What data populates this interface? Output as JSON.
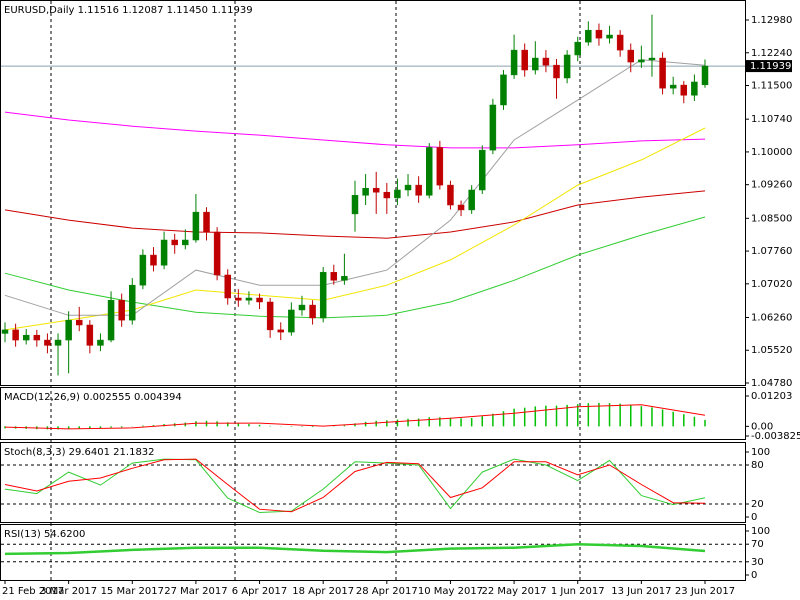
{
  "chart_data": [
    {
      "type": "candlestick",
      "title": "EURUSD,Daily  1.11516 1.12087 1.11450 1.11939",
      "price_tag": "1.11939",
      "up_color": "#008000",
      "down_color": "#c00000",
      "categories": [
        "21 Feb 2017",
        null,
        null,
        null,
        null,
        null,
        "3 Mar 2017",
        null,
        null,
        null,
        null,
        null,
        "15 Mar 2017",
        null,
        null,
        null,
        null,
        null,
        "27 Mar 2017",
        null,
        null,
        null,
        null,
        null,
        "6 Apr 2017",
        null,
        null,
        null,
        null,
        null,
        "18 Apr 2017",
        null,
        null,
        null,
        null,
        null,
        "28 Apr 2017",
        null,
        null,
        null,
        null,
        null,
        "10 May 2017",
        null,
        null,
        null,
        null,
        null,
        "22 May 2017",
        null,
        null,
        null,
        null,
        null,
        "1 Jun 2017",
        null,
        null,
        null,
        null,
        null,
        "13 Jun 2017",
        null,
        null,
        null,
        null,
        null,
        "23 Jun 2017"
      ],
      "ohlc": [
        [
          1.059,
          1.0615,
          1.057,
          1.0598
        ],
        [
          1.0598,
          1.0612,
          1.056,
          1.0575
        ],
        [
          1.0575,
          1.06,
          1.0565,
          1.0586
        ],
        [
          1.0586,
          1.0598,
          1.056,
          1.0575
        ],
        [
          1.0575,
          1.059,
          1.0545,
          1.0563
        ],
        [
          1.0563,
          1.059,
          1.0495,
          1.0575
        ],
        [
          1.0575,
          1.064,
          1.05,
          1.062
        ],
        [
          1.062,
          1.065,
          1.0595,
          1.0609
        ],
        [
          1.0609,
          1.062,
          1.0545,
          1.0563
        ],
        [
          1.0563,
          1.059,
          1.055,
          1.0575
        ],
        [
          1.0575,
          1.0685,
          1.057,
          1.0665
        ],
        [
          1.0665,
          1.068,
          1.0605,
          1.062
        ],
        [
          1.062,
          1.0715,
          1.061,
          1.0699
        ],
        [
          1.0699,
          1.078,
          1.069,
          1.0767
        ],
        [
          1.0767,
          1.0785,
          1.073,
          1.0744
        ],
        [
          1.0744,
          1.082,
          1.0735,
          1.0801
        ],
        [
          1.0801,
          1.0815,
          1.077,
          1.079
        ],
        [
          1.079,
          1.0825,
          1.078,
          1.0801
        ],
        [
          1.0801,
          1.0905,
          1.0795,
          1.0864
        ],
        [
          1.0864,
          1.0875,
          1.08,
          1.0819
        ],
        [
          1.0819,
          1.083,
          1.071,
          1.0722
        ],
        [
          1.0722,
          1.0735,
          1.0655,
          1.067
        ],
        [
          1.067,
          1.069,
          1.065,
          1.0665
        ],
        [
          1.0665,
          1.0685,
          1.0655,
          1.067
        ],
        [
          1.067,
          1.068,
          1.0645,
          1.0661
        ],
        [
          1.0661,
          1.067,
          1.058,
          1.0598
        ],
        [
          1.0598,
          1.0615,
          1.0575,
          1.0593
        ],
        [
          1.0593,
          1.066,
          1.0585,
          1.0643
        ],
        [
          1.0643,
          1.0675,
          1.063,
          1.0654
        ],
        [
          1.0654,
          1.0665,
          1.061,
          1.0625
        ],
        [
          1.0625,
          1.074,
          1.0615,
          1.0728
        ],
        [
          1.0728,
          1.0745,
          1.07,
          1.071
        ],
        [
          1.071,
          1.077,
          1.07,
          1.0719
        ],
        [
          1.086,
          1.0935,
          1.082,
          1.0902
        ],
        [
          1.0902,
          1.095,
          1.088,
          1.0918
        ],
        [
          1.0918,
          1.0955,
          1.086,
          1.0909
        ],
        [
          1.0909,
          1.093,
          1.086,
          1.0896
        ],
        [
          1.0896,
          1.094,
          1.088,
          1.0914
        ],
        [
          1.0914,
          1.095,
          1.09,
          1.0925
        ],
        [
          1.0925,
          1.0945,
          1.0885,
          1.0902
        ],
        [
          1.0902,
          1.102,
          1.0895,
          1.101
        ],
        [
          1.101,
          1.1025,
          1.0915,
          1.0925
        ],
        [
          1.0925,
          1.0935,
          1.087,
          1.088
        ],
        [
          1.088,
          1.089,
          1.0855,
          1.0869
        ],
        [
          1.0869,
          1.0925,
          1.086,
          1.0914
        ],
        [
          1.0914,
          1.1015,
          1.0905,
          1.1004
        ],
        [
          1.1004,
          1.112,
          1.0995,
          1.1106
        ],
        [
          1.1106,
          1.1185,
          1.1095,
          1.1174
        ],
        [
          1.1174,
          1.1265,
          1.1165,
          1.123
        ],
        [
          1.123,
          1.1245,
          1.117,
          1.1185
        ],
        [
          1.1185,
          1.125,
          1.1175,
          1.1212
        ],
        [
          1.1212,
          1.123,
          1.118,
          1.1196
        ],
        [
          1.1196,
          1.121,
          1.112,
          1.1167
        ],
        [
          1.1167,
          1.123,
          1.1155,
          1.1219
        ],
        [
          1.1219,
          1.126,
          1.1205,
          1.1248
        ],
        [
          1.1248,
          1.1295,
          1.124,
          1.1275
        ],
        [
          1.1275,
          1.129,
          1.124,
          1.1257
        ],
        [
          1.1257,
          1.1285,
          1.1245,
          1.1264
        ],
        [
          1.1264,
          1.1275,
          1.1215,
          1.123
        ],
        [
          1.123,
          1.1245,
          1.118,
          1.1203
        ],
        [
          1.1203,
          1.124,
          1.119,
          1.1208
        ],
        [
          1.1208,
          1.131,
          1.117,
          1.1212
        ],
        [
          1.1212,
          1.1225,
          1.113,
          1.1144
        ],
        [
          1.1144,
          1.117,
          1.113,
          1.1151
        ],
        [
          1.1151,
          1.116,
          1.111,
          1.1128
        ],
        [
          1.1128,
          1.1175,
          1.1115,
          1.1158
        ],
        [
          1.11516,
          1.12087,
          1.1145,
          1.11939
        ]
      ],
      "series": [
        {
          "color": "#ff00ff",
          "x": [
            0,
            6,
            12,
            18,
            24,
            30,
            36,
            42,
            48,
            54,
            60,
            66
          ],
          "values": [
            1.109,
            1.1072,
            1.1058,
            1.1047,
            1.1038,
            1.1027,
            1.1016,
            1.1009,
            1.1009,
            1.1016,
            1.1025,
            1.1029
          ]
        },
        {
          "color": "#cc0000",
          "x": [
            0,
            6,
            12,
            18,
            24,
            30,
            36,
            42,
            48,
            54,
            60,
            66
          ],
          "values": [
            1.0869,
            1.0846,
            1.0828,
            1.0819,
            1.0817,
            1.081,
            1.0805,
            1.0819,
            1.0842,
            1.088,
            1.0898,
            1.0912
          ]
        },
        {
          "color": "#32cd32",
          "x": [
            0,
            6,
            12,
            18,
            24,
            30,
            36,
            42,
            48,
            54,
            60,
            66
          ],
          "values": [
            1.0726,
            1.0688,
            1.0661,
            1.0638,
            1.0629,
            1.0625,
            1.0631,
            1.0661,
            1.071,
            1.0767,
            1.0812,
            1.0853
          ]
        },
        {
          "color": "#f2e600",
          "x": [
            0,
            6,
            12,
            18,
            24,
            30,
            36,
            42,
            48,
            54,
            60,
            66
          ],
          "values": [
            1.0598,
            1.062,
            1.0643,
            1.0688,
            1.0676,
            1.0665,
            1.0699,
            1.0756,
            1.0835,
            1.0925,
            1.0982,
            1.1054
          ]
        },
        {
          "color": "#a0a0a0",
          "x": [
            0,
            6,
            12,
            18,
            24,
            30,
            36,
            42,
            48,
            54,
            60,
            66
          ],
          "values": [
            1.0676,
            1.0631,
            1.0631,
            1.0733,
            1.0699,
            1.0699,
            1.0733,
            1.0846,
            1.1027,
            1.1117,
            1.1208,
            1.1196
          ]
        }
      ],
      "ylim": [
        1.0478,
        1.1298
      ],
      "yticks": [
        {
          "value": 1.1298,
          "label": "1.12980"
        },
        {
          "value": 1.1224,
          "label": "1.12240"
        },
        {
          "value": 1.115,
          "label": "1.11500"
        },
        {
          "value": 1.1074,
          "label": "1.10740"
        },
        {
          "value": 1.1,
          "label": "1.10000"
        },
        {
          "value": 1.0926,
          "label": "1.09260"
        },
        {
          "value": 1.085,
          "label": "1.08500"
        },
        {
          "value": 1.0776,
          "label": "1.07760"
        },
        {
          "value": 1.0702,
          "label": "1.07020"
        },
        {
          "value": 1.0626,
          "label": "1.06260"
        },
        {
          "value": 1.0552,
          "label": "1.05520"
        },
        {
          "value": 1.0478,
          "label": "1.04780"
        }
      ]
    },
    {
      "type": "macd",
      "title": "MACD(12,26,9) 0.002555 0.004394",
      "bar_color": "#00c000",
      "values": [
        -0.0008,
        -0.0009,
        -0.001,
        -0.0011,
        -0.0012,
        -0.0012,
        -0.001,
        -0.0009,
        -0.0009,
        -0.0008,
        -0.0005,
        -0.0004,
        -0.0001,
        0.0003,
        0.0005,
        0.0009,
        0.0012,
        0.0015,
        0.002,
        0.0022,
        0.002,
        0.0016,
        0.0012,
        0.0009,
        0.0006,
        0.0002,
        -0.0001,
        -0.0002,
        -0.0002,
        -0.0003,
        0.0,
        0.0002,
        0.0004,
        0.0012,
        0.0018,
        0.0022,
        0.0024,
        0.0027,
        0.003,
        0.0031,
        0.0036,
        0.0036,
        0.0034,
        0.0032,
        0.0033,
        0.004,
        0.005,
        0.006,
        0.007,
        0.0074,
        0.0079,
        0.0082,
        0.0082,
        0.0085,
        0.0088,
        0.0092,
        0.0093,
        0.0092,
        0.009,
        0.0085,
        0.008,
        0.0075,
        0.0067,
        0.0058,
        0.0048,
        0.0038,
        0.002555
      ],
      "series": [
        {
          "color": "#ff0000",
          "x": [
            0,
            6,
            12,
            18,
            24,
            30,
            36,
            42,
            48,
            54,
            60,
            66
          ],
          "values": [
            -0.0003,
            -0.001,
            -0.0006,
            0.0012,
            0.0013,
            0.0001,
            0.0016,
            0.0032,
            0.0052,
            0.0078,
            0.0086,
            0.004394
          ]
        }
      ],
      "ylim": [
        -0.003825,
        0.01203
      ],
      "yticks": [
        0.01203,
        {
          "value": 0,
          "label": "0.00"
        },
        -0.003825
      ]
    },
    {
      "type": "line",
      "title": "Stoch(8,3,3) 29.6401 21.1832",
      "grid": true,
      "series": [
        {
          "color": "#32cd32",
          "x": [
            0,
            3,
            6,
            9,
            12,
            15,
            18,
            21,
            24,
            27,
            30,
            33,
            36,
            39,
            42,
            45,
            48,
            51,
            54,
            57,
            60,
            63,
            66
          ],
          "values": [
            43,
            36,
            69,
            49,
            83,
            89,
            88,
            29,
            7,
            9,
            43,
            85,
            83,
            80,
            13,
            69,
            89,
            80,
            56,
            87,
            33,
            19,
            29.6401
          ]
        },
        {
          "color": "#ff0000",
          "x": [
            0,
            3,
            6,
            9,
            12,
            15,
            18,
            21,
            24,
            27,
            30,
            33,
            36,
            39,
            42,
            45,
            48,
            51,
            54,
            57,
            60,
            63,
            66
          ],
          "values": [
            50,
            40,
            55,
            60,
            75,
            88,
            89,
            50,
            12,
            8,
            30,
            70,
            84,
            82,
            30,
            45,
            85,
            85,
            65,
            80,
            50,
            22,
            21.1832
          ]
        }
      ],
      "ylim": [
        0,
        100
      ],
      "yticks": [
        100,
        80,
        20,
        0
      ]
    },
    {
      "type": "line",
      "title": "RSI(13) 54.6200",
      "grid": true,
      "line_width": 2.5,
      "series": [
        {
          "color": "#32cd32",
          "x": [
            0,
            6,
            12,
            18,
            24,
            30,
            36,
            42,
            48,
            54,
            60,
            66
          ],
          "values": [
            48,
            50,
            57,
            62,
            62,
            55,
            52,
            60,
            62,
            70,
            66,
            54.62
          ]
        }
      ],
      "ylim": [
        0,
        100
      ],
      "yticks": [
        100,
        70,
        30,
        0
      ]
    }
  ]
}
